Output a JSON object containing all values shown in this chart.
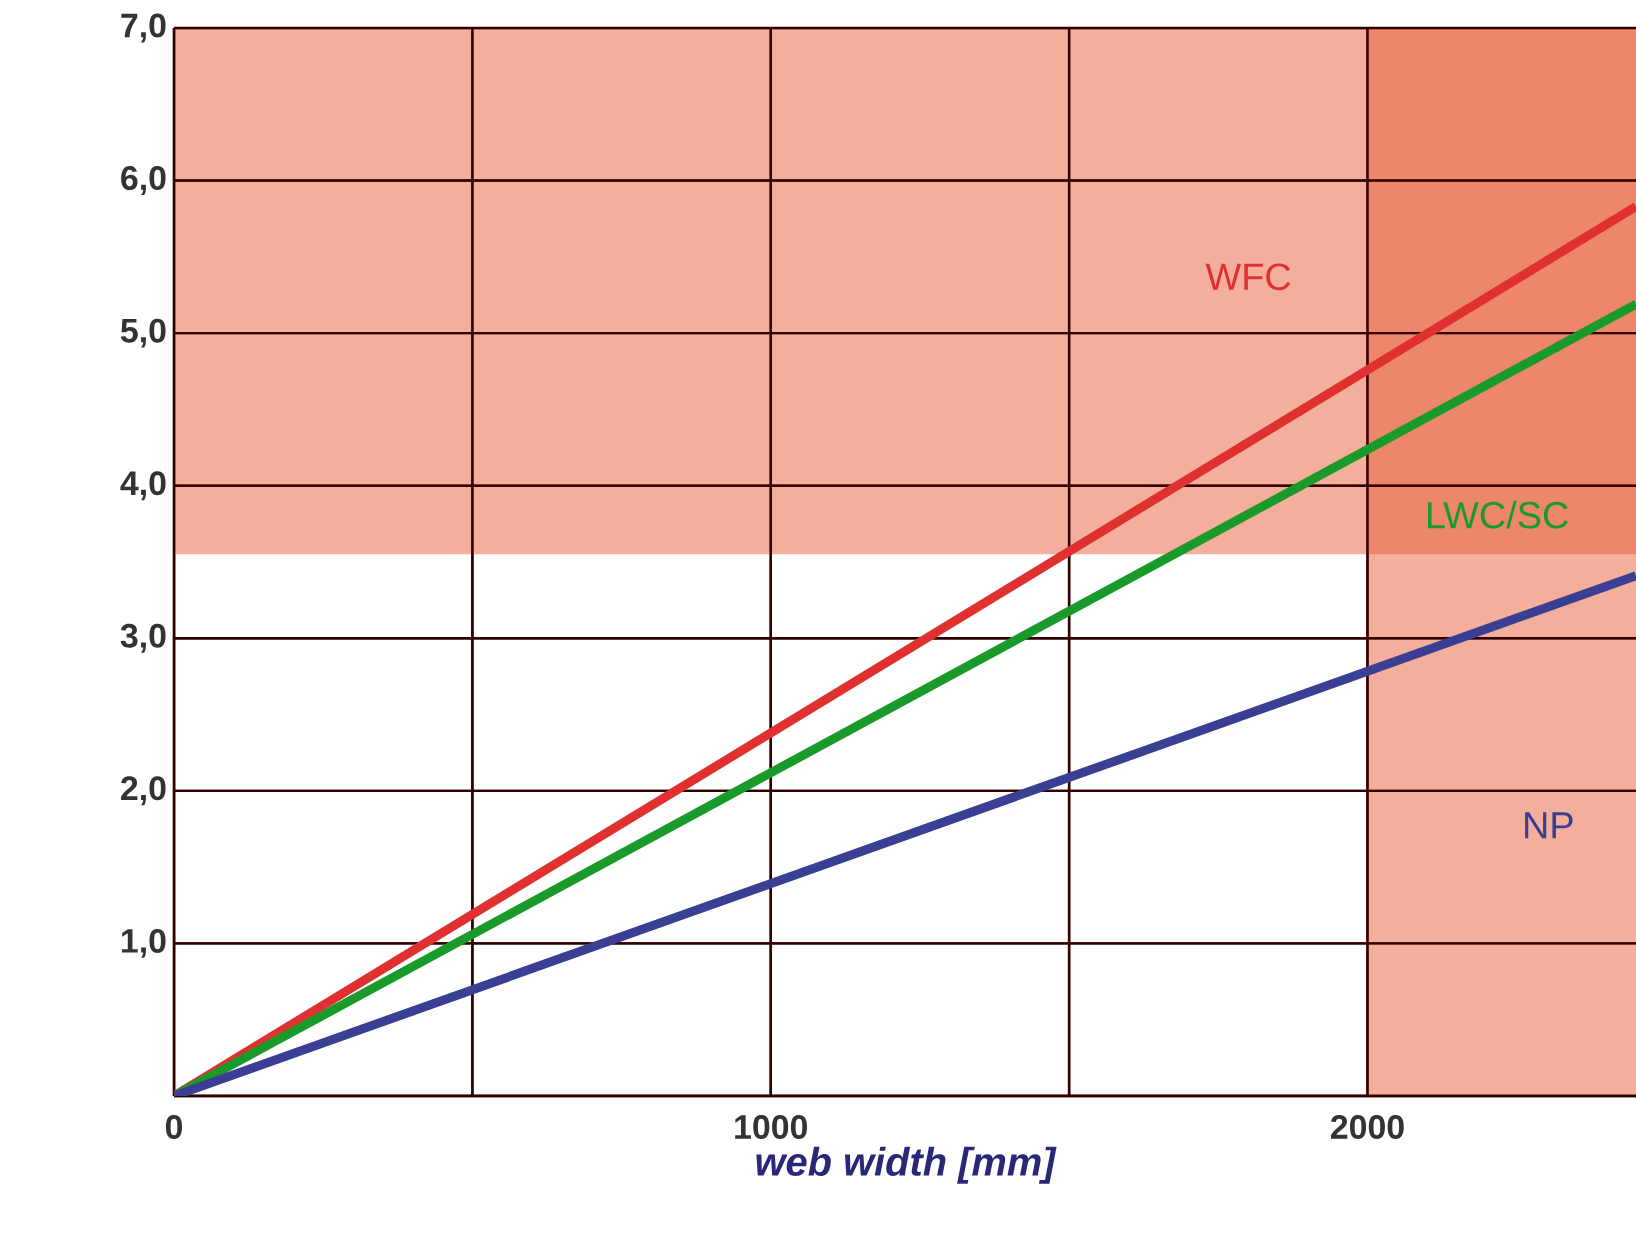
{
  "chart_data": {
    "type": "line",
    "xlabel": "web width [mm]",
    "x": [
      0,
      2450
    ],
    "series": [
      {
        "name": "WFC",
        "color": "#e03030",
        "values": [
          0,
          5.83
        ]
      },
      {
        "name": "LWC/SC",
        "color": "#1a9a2a",
        "values": [
          0,
          5.19
        ]
      },
      {
        "name": "NP",
        "color": "#3a3f94",
        "values": [
          0,
          3.41
        ]
      }
    ],
    "xlim": [
      0,
      2450
    ],
    "ylim": [
      0,
      7
    ],
    "xticks": [
      0,
      {
        "value": 500,
        "label": null
      },
      1000,
      {
        "value": 1500,
        "label": null
      },
      2000
    ],
    "yticks": [
      {
        "value": 0,
        "label": null
      },
      {
        "value": 1,
        "label": "1,0"
      },
      {
        "value": 2,
        "label": "2,0"
      },
      {
        "value": 3,
        "label": "3,0"
      },
      {
        "value": 4,
        "label": "4,0"
      },
      {
        "value": 5,
        "label": "5,0"
      },
      {
        "value": 6,
        "label": "6,0"
      },
      {
        "value": 7,
        "label": "7,0"
      }
    ],
    "bands": [
      {
        "axis": "y",
        "from": 3.55,
        "to": 7,
        "color": "#e8603a"
      },
      {
        "axis": "x",
        "from": 2000,
        "to": 2450,
        "color": "#e8603a"
      }
    ],
    "grid": true,
    "marker": "none",
    "line_style": "solid"
  }
}
